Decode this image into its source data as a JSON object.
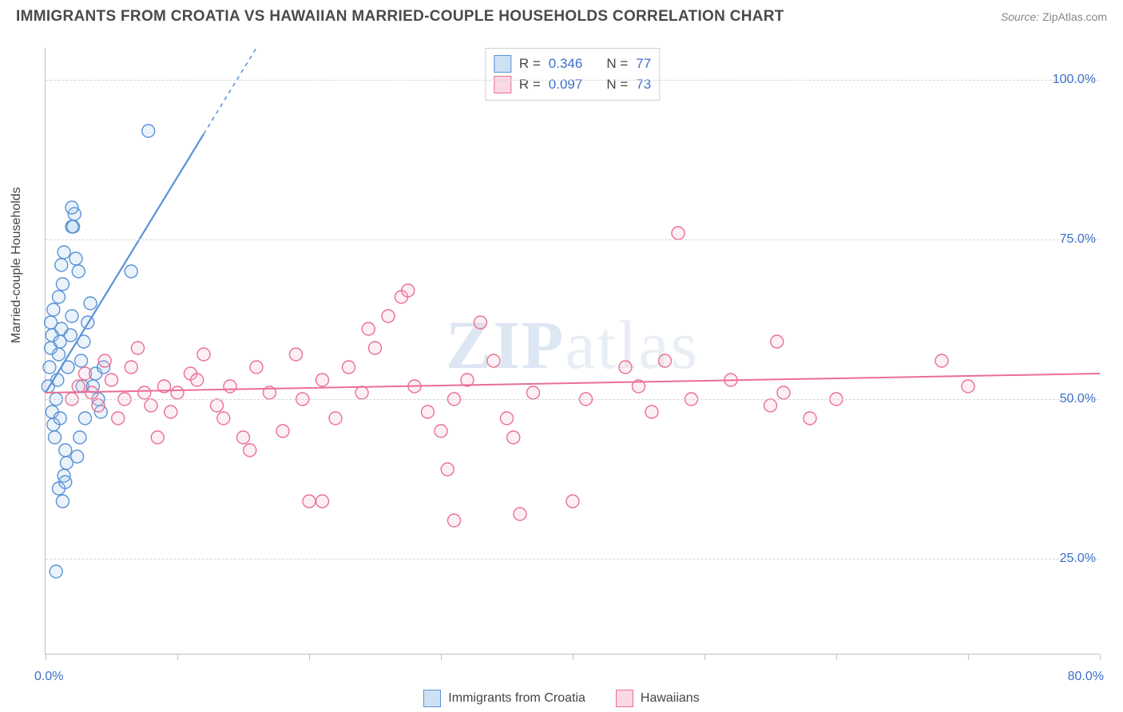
{
  "title": "IMMIGRANTS FROM CROATIA VS HAWAIIAN MARRIED-COUPLE HOUSEHOLDS CORRELATION CHART",
  "source_label": "Source:",
  "source_value": "ZipAtlas.com",
  "ylabel": "Married-couple Households",
  "watermark": {
    "prefix": "ZIP",
    "suffix": "atlas"
  },
  "chart": {
    "type": "scatter",
    "background_color": "#ffffff",
    "grid_color": "#d6d6d6",
    "axis_color": "#c0c0c0",
    "tick_label_color": "#3b6fc9",
    "tick_fontsize": 16,
    "ylabel_fontsize": 16,
    "xlim": [
      0,
      80
    ],
    "ylim": [
      10,
      105
    ],
    "y_gridlines": [
      25,
      50,
      75,
      100
    ],
    "y_tick_labels": [
      "25.0%",
      "50.0%",
      "75.0%",
      "100.0%"
    ],
    "x_ticks": [
      0,
      10,
      20,
      30,
      40,
      50,
      60,
      70,
      80
    ],
    "x_left_label": "0.0%",
    "x_right_label": "80.0%",
    "marker_radius": 8,
    "marker_stroke_width": 1.4,
    "marker_fill_opacity": 0.22,
    "series": [
      {
        "name": "Immigrants from Croatia",
        "color_stroke": "#5a93d6",
        "color_fill": "#9ec3ea",
        "trend": {
          "x1": 0,
          "y1": 51,
          "x2": 16,
          "y2": 105,
          "dashed_beyond_x": 12,
          "width": 2.2
        },
        "stats": {
          "R": "0.346",
          "N": "77"
        },
        "points": [
          [
            0.2,
            52
          ],
          [
            0.3,
            55
          ],
          [
            0.4,
            58
          ],
          [
            0.5,
            60
          ],
          [
            0.4,
            62
          ],
          [
            0.6,
            64
          ],
          [
            0.5,
            48
          ],
          [
            0.6,
            46
          ],
          [
            0.7,
            44
          ],
          [
            0.8,
            50
          ],
          [
            0.9,
            53
          ],
          [
            1.0,
            57
          ],
          [
            1.1,
            59
          ],
          [
            1.2,
            61
          ],
          [
            1.0,
            66
          ],
          [
            1.3,
            68
          ],
          [
            1.2,
            71
          ],
          [
            1.4,
            73
          ],
          [
            1.1,
            47
          ],
          [
            1.5,
            42
          ],
          [
            1.6,
            40
          ],
          [
            1.4,
            38
          ],
          [
            1.7,
            55
          ],
          [
            1.9,
            60
          ],
          [
            2.0,
            63
          ],
          [
            2.0,
            77
          ],
          [
            2.1,
            77
          ],
          [
            2.2,
            79
          ],
          [
            2.0,
            80
          ],
          [
            2.3,
            72
          ],
          [
            2.5,
            70
          ],
          [
            2.7,
            56
          ],
          [
            2.8,
            52
          ],
          [
            3.0,
            47
          ],
          [
            2.6,
            44
          ],
          [
            2.4,
            41
          ],
          [
            2.9,
            59
          ],
          [
            3.2,
            62
          ],
          [
            3.4,
            65
          ],
          [
            3.6,
            52
          ],
          [
            3.8,
            54
          ],
          [
            4.0,
            50
          ],
          [
            4.2,
            48
          ],
          [
            4.4,
            55
          ],
          [
            1.0,
            36
          ],
          [
            1.3,
            34
          ],
          [
            1.5,
            37
          ],
          [
            0.8,
            23
          ],
          [
            6.5,
            70
          ],
          [
            7.8,
            92
          ]
        ]
      },
      {
        "name": "Hawaiians",
        "color_stroke": "#ea6f94",
        "color_fill": "#f6b9cb",
        "trend": {
          "x1": 0,
          "y1": 51,
          "x2": 80,
          "y2": 54,
          "dashed_beyond_x": 80,
          "width": 2.0
        },
        "stats": {
          "R": "0.097",
          "N": "73"
        },
        "points": [
          [
            2,
            50
          ],
          [
            2.5,
            52
          ],
          [
            3,
            54
          ],
          [
            3.5,
            51
          ],
          [
            4,
            49
          ],
          [
            4.5,
            56
          ],
          [
            5,
            53
          ],
          [
            5.5,
            47
          ],
          [
            6,
            50
          ],
          [
            6.5,
            55
          ],
          [
            7,
            58
          ],
          [
            7.5,
            51
          ],
          [
            8,
            49
          ],
          [
            8.5,
            44
          ],
          [
            9,
            52
          ],
          [
            9.5,
            48
          ],
          [
            10,
            51
          ],
          [
            11,
            54
          ],
          [
            11.5,
            53
          ],
          [
            12,
            57
          ],
          [
            13,
            49
          ],
          [
            13.5,
            47
          ],
          [
            14,
            52
          ],
          [
            15,
            44
          ],
          [
            15.5,
            42
          ],
          [
            16,
            55
          ],
          [
            17,
            51
          ],
          [
            18,
            45
          ],
          [
            19,
            57
          ],
          [
            19.5,
            50
          ],
          [
            20,
            34
          ],
          [
            21,
            53
          ],
          [
            22,
            47
          ],
          [
            21,
            34
          ],
          [
            23,
            55
          ],
          [
            24,
            51
          ],
          [
            24.5,
            61
          ],
          [
            25,
            58
          ],
          [
            26,
            63
          ],
          [
            27,
            66
          ],
          [
            27.5,
            67
          ],
          [
            28,
            52
          ],
          [
            29,
            48
          ],
          [
            30,
            45
          ],
          [
            30.5,
            39
          ],
          [
            31,
            31
          ],
          [
            31,
            50
          ],
          [
            32,
            53
          ],
          [
            33,
            62
          ],
          [
            34,
            56
          ],
          [
            35,
            47
          ],
          [
            35.5,
            44
          ],
          [
            36,
            32
          ],
          [
            37,
            51
          ],
          [
            40,
            34
          ],
          [
            41,
            50
          ],
          [
            44,
            55
          ],
          [
            45,
            52
          ],
          [
            46,
            48
          ],
          [
            47,
            56
          ],
          [
            48,
            76
          ],
          [
            49,
            50
          ],
          [
            52,
            53
          ],
          [
            55,
            49
          ],
          [
            55.5,
            59
          ],
          [
            56,
            51
          ],
          [
            58,
            47
          ],
          [
            60,
            50
          ],
          [
            68,
            56
          ],
          [
            70,
            52
          ]
        ]
      }
    ],
    "legend": {
      "items": [
        {
          "label": "Immigrants from Croatia",
          "swatch_fill": "#cde1f5",
          "swatch_border": "#5a93d6"
        },
        {
          "label": "Hawaiians",
          "swatch_fill": "#fbd9e3",
          "swatch_border": "#ea6f94"
        }
      ]
    },
    "stats_box": {
      "border_color": "#d0d0d0",
      "rows": [
        {
          "swatch_fill": "#cde1f5",
          "swatch_border": "#5a93d6",
          "R": "0.346",
          "N": "77"
        },
        {
          "swatch_fill": "#fbd9e3",
          "swatch_border": "#ea6f94",
          "R": "0.097",
          "N": "73"
        }
      ]
    }
  }
}
